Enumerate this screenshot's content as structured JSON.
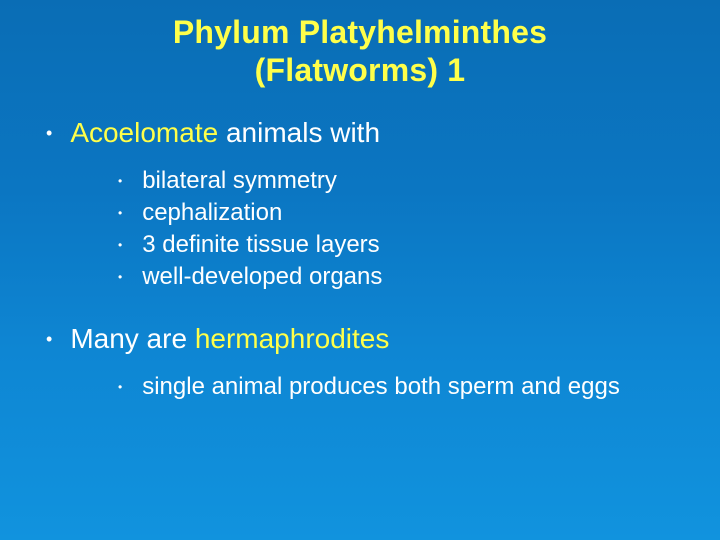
{
  "colors": {
    "background_gradient_top": "#0a6db5",
    "background_gradient_bottom": "#1193de",
    "title_color": "#ffff4a",
    "body_text_color": "#ffffff",
    "highlight_color": "#ffff4a"
  },
  "typography": {
    "title_fontsize_pt": 32,
    "l1_fontsize_pt": 28,
    "l2_fontsize_pt": 24,
    "font_family": "Arial"
  },
  "title_line1": "Phylum Platyhelminthes",
  "title_line2": "(Flatworms) 1",
  "bullets": [
    {
      "highlight": "Acoelomate",
      "rest": " animals with",
      "sub": [
        "bilateral symmetry",
        "cephalization",
        "3 definite tissue layers",
        "well-developed organs"
      ]
    },
    {
      "plain_prefix": "Many are ",
      "highlight": "hermaphrodites",
      "rest": "",
      "sub": [
        "single animal produces both sperm and eggs"
      ]
    }
  ]
}
